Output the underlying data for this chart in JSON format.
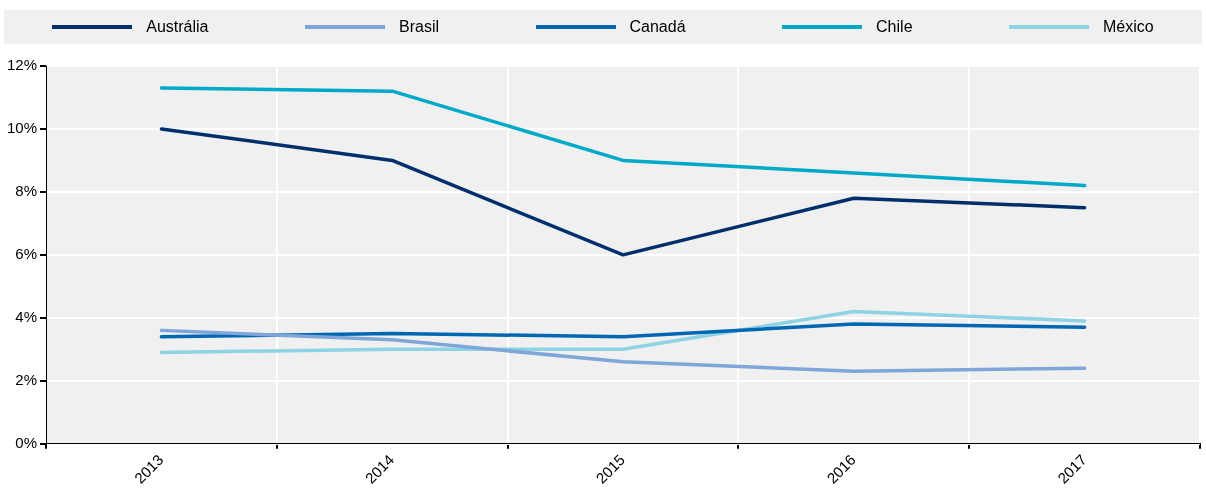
{
  "chart_data": {
    "type": "line",
    "categories": [
      "2013",
      "2014",
      "2015",
      "2016",
      "2017"
    ],
    "series": [
      {
        "name": "Austrália",
        "color": "#002f6c",
        "values": [
          10.0,
          9.0,
          6.0,
          7.8,
          7.5
        ]
      },
      {
        "name": "Brasil",
        "color": "#7fa6d8",
        "values": [
          3.6,
          3.3,
          2.6,
          2.3,
          2.4
        ]
      },
      {
        "name": "Canadá",
        "color": "#0068b3",
        "values": [
          3.4,
          3.5,
          3.4,
          3.8,
          3.7
        ]
      },
      {
        "name": "Chile",
        "color": "#00a9c8",
        "values": [
          11.3,
          11.2,
          9.0,
          8.6,
          8.2
        ]
      },
      {
        "name": "México",
        "color": "#8dd3e3",
        "values": [
          2.9,
          3.0,
          3.0,
          4.2,
          3.9
        ]
      }
    ],
    "ylim": [
      0,
      12
    ],
    "yticks": [
      {
        "value": 0,
        "label": "0%"
      },
      {
        "value": 2,
        "label": "2%"
      },
      {
        "value": 4,
        "label": "4%"
      },
      {
        "value": 6,
        "label": "6%"
      },
      {
        "value": 8,
        "label": "8%"
      },
      {
        "value": 10,
        "label": "10%"
      },
      {
        "value": 12,
        "label": "12%"
      }
    ],
    "grid": true,
    "legend": "top",
    "marker": "none",
    "line_style": "solid"
  }
}
